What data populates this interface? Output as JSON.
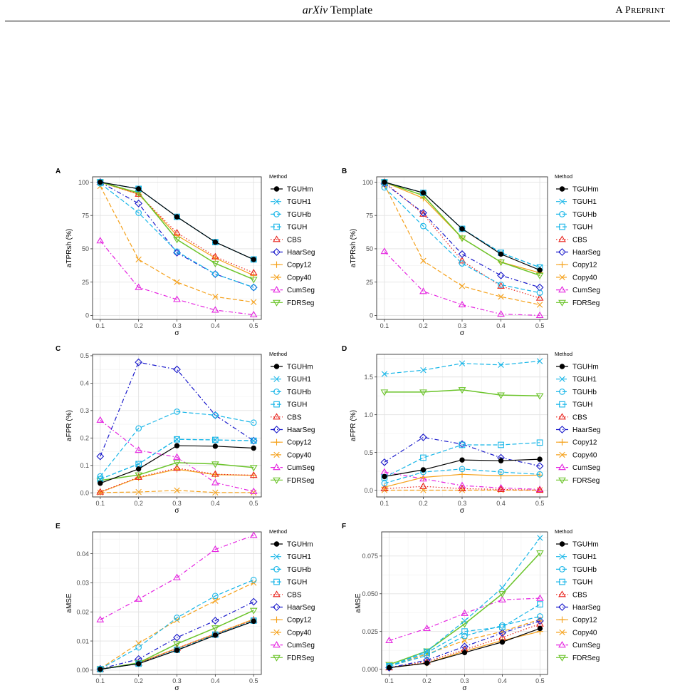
{
  "header": {
    "title_italic": "arXiv",
    "title_rest": " Template",
    "right_first": "A P",
    "right_small": "REPRINT"
  },
  "legend_title": "Method",
  "methods": [
    {
      "name": "TGUHm",
      "color": "#000000",
      "marker": "dot",
      "dash": "solid"
    },
    {
      "name": "TGUH1",
      "color": "#18B6E8",
      "marker": "x",
      "dash": "dashed"
    },
    {
      "name": "TGUHb",
      "color": "#18B6E8",
      "marker": "circle",
      "dash": "dashed"
    },
    {
      "name": "TGUH",
      "color": "#18B6E8",
      "marker": "square",
      "dash": "dashed"
    },
    {
      "name": "CBS",
      "color": "#E8211A",
      "marker": "triangle",
      "dash": "dotted"
    },
    {
      "name": "HaarSeg",
      "color": "#1A1ACB",
      "marker": "diamond",
      "dash": "dashdot"
    },
    {
      "name": "Copy12",
      "color": "#F5A11B",
      "marker": "plus",
      "dash": "solid"
    },
    {
      "name": "Copy40",
      "color": "#F5A11B",
      "marker": "x",
      "dash": "dashed"
    },
    {
      "name": "CumSeg",
      "color": "#E523E0",
      "marker": "triangle",
      "dash": "dashdot"
    },
    {
      "name": "FDRSeg",
      "color": "#6BC42A",
      "marker": "triangle_down",
      "dash": "solid"
    }
  ],
  "chart_data": [
    {
      "panel": "A",
      "type": "line",
      "xlabel": "σ",
      "ylabel": "aTPRsh (%)",
      "x": [
        0.1,
        0.2,
        0.3,
        0.4,
        0.5
      ],
      "ylim": [
        -3,
        104
      ],
      "xticks": [
        "0.1",
        "0.2",
        "0.3",
        "0.4",
        "0.5"
      ],
      "yticks": [
        0,
        25,
        50,
        75,
        100
      ],
      "ytick_labels": [
        "0",
        "25",
        "50",
        "75",
        "100"
      ],
      "series": [
        {
          "name": "TGUHm",
          "values": [
            100,
            95,
            74,
            55,
            42
          ]
        },
        {
          "name": "TGUH1",
          "values": [
            100,
            95,
            74,
            55,
            42
          ]
        },
        {
          "name": "TGUHb",
          "values": [
            99,
            77,
            48,
            31,
            21
          ]
        },
        {
          "name": "TGUH",
          "values": [
            100,
            95,
            74,
            55,
            42
          ]
        },
        {
          "name": "CBS",
          "values": [
            100,
            91,
            62,
            44,
            32
          ]
        },
        {
          "name": "HaarSeg",
          "values": [
            100,
            84,
            47,
            31,
            21
          ]
        },
        {
          "name": "Copy12",
          "values": [
            100,
            91,
            60,
            43,
            30
          ]
        },
        {
          "name": "Copy40",
          "values": [
            97,
            42,
            25,
            14,
            10
          ]
        },
        {
          "name": "CumSeg",
          "values": [
            56,
            21,
            12,
            4,
            0.5
          ]
        },
        {
          "name": "FDRSeg",
          "values": [
            100,
            92,
            57,
            39,
            27
          ]
        }
      ]
    },
    {
      "panel": "B",
      "type": "line",
      "xlabel": "σ",
      "ylabel": "aTPRsh (%)",
      "x": [
        0.1,
        0.2,
        0.3,
        0.4,
        0.5
      ],
      "ylim": [
        -3,
        104
      ],
      "xticks": [
        "0.1",
        "0.2",
        "0.3",
        "0.4",
        "0.5"
      ],
      "yticks": [
        0,
        25,
        50,
        75,
        100
      ],
      "ytick_labels": [
        "0",
        "25",
        "50",
        "75",
        "100"
      ],
      "series": [
        {
          "name": "TGUHm",
          "values": [
            100,
            92,
            65,
            46,
            34
          ]
        },
        {
          "name": "TGUH1",
          "values": [
            100,
            92,
            65,
            47,
            36
          ]
        },
        {
          "name": "TGUHb",
          "values": [
            96,
            67,
            39,
            23,
            17
          ]
        },
        {
          "name": "TGUH",
          "values": [
            100,
            92,
            65,
            47,
            36
          ]
        },
        {
          "name": "CBS",
          "values": [
            100,
            76,
            41,
            22,
            13
          ]
        },
        {
          "name": "HaarSeg",
          "values": [
            99,
            77,
            46,
            30,
            21
          ]
        },
        {
          "name": "Copy12",
          "values": [
            100,
            88,
            58,
            40,
            32
          ]
        },
        {
          "name": "Copy40",
          "values": [
            98,
            41,
            22,
            14,
            8
          ]
        },
        {
          "name": "CumSeg",
          "values": [
            48,
            18,
            8,
            1,
            0
          ]
        },
        {
          "name": "FDRSeg",
          "values": [
            100,
            90,
            58,
            40,
            30
          ]
        }
      ]
    },
    {
      "panel": "C",
      "type": "line",
      "xlabel": "σ",
      "ylabel": "aFPR (%)",
      "x": [
        0.1,
        0.2,
        0.3,
        0.4,
        0.5
      ],
      "ylim": [
        -0.015,
        0.505
      ],
      "xticks": [
        "0.1",
        "0.2",
        "0.3",
        "0.4",
        "0.5"
      ],
      "yticks": [
        0,
        0.1,
        0.2,
        0.3,
        0.4,
        0.5
      ],
      "ytick_labels": [
        "0.0",
        "0.1",
        "0.2",
        "0.3",
        "0.4",
        "0.5"
      ],
      "series": [
        {
          "name": "TGUHm",
          "values": [
            0.035,
            0.087,
            0.172,
            0.17,
            0.163
          ]
        },
        {
          "name": "TGUH1",
          "values": [
            0.05,
            0.105,
            0.195,
            0.193,
            0.19
          ]
        },
        {
          "name": "TGUHb",
          "values": [
            0.06,
            0.235,
            0.296,
            0.283,
            0.256
          ]
        },
        {
          "name": "TGUH",
          "values": [
            0.05,
            0.105,
            0.195,
            0.193,
            0.19
          ]
        },
        {
          "name": "CBS",
          "values": [
            0.003,
            0.057,
            0.09,
            0.068,
            0.064
          ]
        },
        {
          "name": "HaarSeg",
          "values": [
            0.133,
            0.476,
            0.45,
            0.283,
            0.19
          ]
        },
        {
          "name": "Copy12",
          "values": [
            0.002,
            0.055,
            0.086,
            0.066,
            0.064
          ]
        },
        {
          "name": "Copy40",
          "values": [
            0.001,
            0.003,
            0.009,
            0.001,
            0.001
          ]
        },
        {
          "name": "CumSeg",
          "values": [
            0.265,
            0.155,
            0.13,
            0.037,
            0.005
          ]
        },
        {
          "name": "FDRSeg",
          "values": [
            0.045,
            0.065,
            0.11,
            0.105,
            0.092
          ]
        }
      ]
    },
    {
      "panel": "D",
      "type": "line",
      "xlabel": "σ",
      "ylabel": "aFPR (%)",
      "x": [
        0.1,
        0.2,
        0.3,
        0.4,
        0.5
      ],
      "ylim": [
        -0.09,
        1.8
      ],
      "xticks": [
        "0.1",
        "0.2",
        "0.3",
        "0.4",
        "0.5"
      ],
      "yticks": [
        0,
        0.5,
        1.0,
        1.5
      ],
      "ytick_labels": [
        "0.0",
        "0.5",
        "1.0",
        "1.5"
      ],
      "series": [
        {
          "name": "TGUHm",
          "values": [
            0.18,
            0.27,
            0.4,
            0.39,
            0.41
          ]
        },
        {
          "name": "TGUH1",
          "values": [
            1.54,
            1.59,
            1.68,
            1.66,
            1.71
          ]
        },
        {
          "name": "TGUHb",
          "values": [
            0.09,
            0.24,
            0.28,
            0.24,
            0.21
          ]
        },
        {
          "name": "TGUH",
          "values": [
            0.17,
            0.43,
            0.6,
            0.6,
            0.63
          ]
        },
        {
          "name": "CBS",
          "values": [
            0.02,
            0.05,
            0.02,
            0.01,
            0.0
          ]
        },
        {
          "name": "HaarSeg",
          "values": [
            0.37,
            0.7,
            0.61,
            0.43,
            0.32
          ]
        },
        {
          "name": "Copy12",
          "values": [
            0.04,
            0.17,
            0.21,
            0.19,
            0.2
          ]
        },
        {
          "name": "Copy40",
          "values": [
            0.0,
            0.0,
            0.0,
            0.0,
            0.0
          ]
        },
        {
          "name": "CumSeg",
          "values": [
            0.24,
            0.15,
            0.06,
            0.03,
            0.01
          ]
        },
        {
          "name": "FDRSeg",
          "values": [
            1.3,
            1.3,
            1.33,
            1.26,
            1.25
          ]
        }
      ]
    },
    {
      "panel": "E",
      "type": "line",
      "xlabel": "σ",
      "ylabel": "aMSE",
      "x": [
        0.1,
        0.2,
        0.3,
        0.4,
        0.5
      ],
      "ylim": [
        -0.0015,
        0.0475
      ],
      "xticks": [
        "0.1",
        "0.2",
        "0.3",
        "0.4",
        "0.5"
      ],
      "yticks": [
        0,
        0.01,
        0.02,
        0.03,
        0.04
      ],
      "ytick_labels": [
        "0.00",
        "0.01",
        "0.02",
        "0.03",
        "0.04"
      ],
      "series": [
        {
          "name": "TGUHm",
          "values": [
            0.0003,
            0.0022,
            0.0068,
            0.012,
            0.0168
          ]
        },
        {
          "name": "TGUH1",
          "values": [
            0.0003,
            0.0022,
            0.007,
            0.0122,
            0.017
          ]
        },
        {
          "name": "TGUHb",
          "values": [
            0.0004,
            0.0078,
            0.018,
            0.0255,
            0.031
          ]
        },
        {
          "name": "TGUH",
          "values": [
            0.0003,
            0.0022,
            0.007,
            0.0122,
            0.017
          ]
        },
        {
          "name": "CBS",
          "values": [
            0.0003,
            0.0024,
            0.0075,
            0.0125,
            0.0172
          ]
        },
        {
          "name": "HaarSeg",
          "values": [
            0.0004,
            0.0038,
            0.0112,
            0.017,
            0.0235
          ]
        },
        {
          "name": "Copy12",
          "values": [
            0.0003,
            0.0025,
            0.0075,
            0.0125,
            0.0175
          ]
        },
        {
          "name": "Copy40",
          "values": [
            0.0005,
            0.0092,
            0.0172,
            0.0238,
            0.03
          ]
        },
        {
          "name": "CumSeg",
          "values": [
            0.0173,
            0.0244,
            0.0318,
            0.0415,
            0.0463
          ]
        },
        {
          "name": "FDRSeg",
          "values": [
            0.0003,
            0.0025,
            0.009,
            0.0145,
            0.0205
          ]
        }
      ]
    },
    {
      "panel": "F",
      "type": "line",
      "xlabel": "σ",
      "ylabel": "aMSE",
      "x": [
        0.1,
        0.2,
        0.3,
        0.4,
        0.5
      ],
      "ylim": [
        -0.0035,
        0.091
      ],
      "xticks": [
        "0.1",
        "0.2",
        "0.3",
        "0.4",
        "0.5"
      ],
      "yticks": [
        0,
        0.025,
        0.05,
        0.075
      ],
      "ytick_labels": [
        "0.000",
        "0.025",
        "0.050",
        "0.075"
      ],
      "series": [
        {
          "name": "TGUHm",
          "values": [
            0.001,
            0.004,
            0.011,
            0.018,
            0.027
          ]
        },
        {
          "name": "TGUH1",
          "values": [
            0.002,
            0.012,
            0.032,
            0.054,
            0.087
          ]
        },
        {
          "name": "TGUHb",
          "values": [
            0.002,
            0.009,
            0.022,
            0.029,
            0.035
          ]
        },
        {
          "name": "TGUH",
          "values": [
            0.002,
            0.011,
            0.025,
            0.028,
            0.043
          ]
        },
        {
          "name": "CBS",
          "values": [
            0.001,
            0.005,
            0.013,
            0.021,
            0.03
          ]
        },
        {
          "name": "HaarSeg",
          "values": [
            0.001,
            0.006,
            0.015,
            0.024,
            0.032
          ]
        },
        {
          "name": "Copy12",
          "values": [
            0.001,
            0.004,
            0.012,
            0.019,
            0.025
          ]
        },
        {
          "name": "Copy40",
          "values": [
            0.002,
            0.01,
            0.019,
            0.025,
            0.033
          ]
        },
        {
          "name": "CumSeg",
          "values": [
            0.019,
            0.027,
            0.037,
            0.046,
            0.047
          ]
        },
        {
          "name": "FDRSeg",
          "values": [
            0.003,
            0.012,
            0.03,
            0.05,
            0.077
          ]
        }
      ]
    }
  ]
}
